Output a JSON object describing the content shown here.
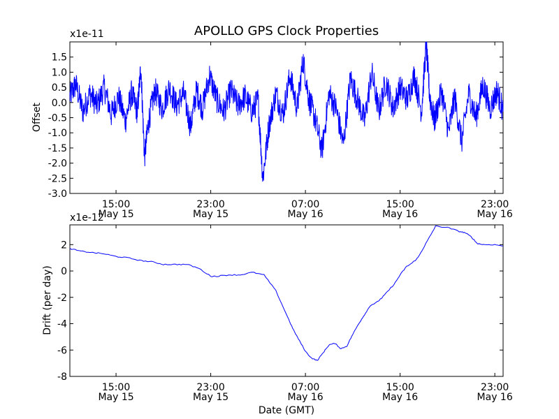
{
  "chart_data": [
    {
      "type": "line",
      "title": "APOLLO GPS Clock Properties",
      "ylabel": "Offset",
      "xlabel": "",
      "y_scale_label": "x1e-11",
      "ylim": [
        -3.0,
        2.0
      ],
      "yticks": [
        -3.0,
        -2.5,
        -2.0,
        -1.5,
        -1.0,
        -0.5,
        0.0,
        0.5,
        1.0,
        1.5
      ],
      "ytick_labels": [
        "-3.0",
        "-2.5",
        "-2.0",
        "-1.5",
        "-1.0",
        "-0.5",
        "0.0",
        "0.5",
        "1.0",
        "1.5"
      ],
      "xlim_hours": [
        11.1,
        47.7
      ],
      "xticks_hours": [
        15,
        23,
        31,
        39,
        47
      ],
      "xtick_labels": [
        {
          "time": "15:00",
          "date": "May 15"
        },
        {
          "time": "23:00",
          "date": "May 15"
        },
        {
          "time": "07:00",
          "date": "May 16"
        },
        {
          "time": "15:00",
          "date": "May 16"
        },
        {
          "time": "23:00",
          "date": "May 16"
        }
      ],
      "color": "#0000ff",
      "series": [
        {
          "name": "Offset",
          "x_hours": [
            11.1,
            11.6,
            12.2,
            12.8,
            13.4,
            14.0,
            14.6,
            15.2,
            15.8,
            16.3,
            16.8,
            17.1,
            17.4,
            17.8,
            18.3,
            18.9,
            19.5,
            20.1,
            20.7,
            21.3,
            21.8,
            22.3,
            22.9,
            23.5,
            24.1,
            24.7,
            25.3,
            25.9,
            26.5,
            27.0,
            27.4,
            27.9,
            28.5,
            29.1,
            29.7,
            30.3,
            30.8,
            31.3,
            31.8,
            32.4,
            33.0,
            33.6,
            34.2,
            34.8,
            35.4,
            36.0,
            36.6,
            37.2,
            37.8,
            38.4,
            39.0,
            39.6,
            40.2,
            40.8,
            41.2,
            41.5,
            41.9,
            42.5,
            43.1,
            43.6,
            44.2,
            44.8,
            45.4,
            46.0,
            46.6,
            47.2,
            47.7
          ],
          "y": [
            0.2,
            0.6,
            -0.3,
            0.3,
            -0.1,
            0.5,
            -0.4,
            0.2,
            -0.6,
            0.3,
            -0.3,
            1.2,
            -1.8,
            -0.5,
            0.4,
            -0.2,
            0.5,
            -0.1,
            0.3,
            -0.8,
            0.4,
            -0.2,
            0.9,
            0.1,
            -0.3,
            0.4,
            -0.1,
            0.2,
            -0.3,
            0.1,
            -2.5,
            -0.8,
            0.3,
            -0.4,
            0.9,
            -0.2,
            1.4,
            0.1,
            -0.5,
            -1.6,
            0.3,
            -0.2,
            -1.4,
            0.8,
            0.1,
            -0.6,
            1.0,
            -0.3,
            0.7,
            -0.2,
            0.5,
            0.1,
            0.9,
            -0.3,
            1.9,
            0.2,
            -0.6,
            0.4,
            -1.0,
            0.2,
            -1.3,
            0.3,
            -0.5,
            0.6,
            -0.2,
            0.4,
            -0.3
          ]
        }
      ]
    },
    {
      "type": "line",
      "title": "",
      "ylabel": "Drift (per day)",
      "xlabel": "Date (GMT)",
      "y_scale_label": "x1e-12",
      "ylim": [
        -8,
        3.5
      ],
      "yticks": [
        -8,
        -6,
        -4,
        -2,
        0,
        2
      ],
      "ytick_labels": [
        "-8",
        "-6",
        "-4",
        "-2",
        "0",
        "2"
      ],
      "xlim_hours": [
        11.1,
        47.7
      ],
      "xticks_hours": [
        15,
        23,
        31,
        39,
        47
      ],
      "xtick_labels": [
        {
          "time": "15:00",
          "date": "May 15"
        },
        {
          "time": "23:00",
          "date": "May 15"
        },
        {
          "time": "07:00",
          "date": "May 16"
        },
        {
          "time": "15:00",
          "date": "May 16"
        },
        {
          "time": "23:00",
          "date": "May 16"
        }
      ],
      "color": "#0000ff",
      "series": [
        {
          "name": "Drift",
          "x_hours": [
            11.1,
            12.0,
            13.0,
            14.0,
            15.0,
            16.0,
            17.0,
            18.0,
            19.0,
            20.0,
            21.0,
            22.0,
            23.0,
            23.5,
            24.5,
            25.5,
            26.5,
            27.5,
            28.5,
            29.5,
            30.0,
            30.5,
            31.0,
            31.5,
            32.0,
            32.5,
            33.0,
            33.5,
            34.0,
            34.5,
            35.0,
            35.5,
            36.0,
            36.5,
            37.0,
            37.5,
            38.0,
            38.5,
            39.0,
            39.5,
            40.0,
            40.5,
            41.0,
            41.5,
            42.0,
            43.0,
            44.0,
            44.5,
            45.0,
            45.5,
            46.0,
            47.0,
            47.7
          ],
          "y": [
            1.7,
            1.5,
            1.4,
            1.3,
            1.1,
            1.0,
            0.8,
            0.7,
            0.5,
            0.5,
            0.5,
            0.2,
            -0.4,
            -0.4,
            -0.3,
            -0.3,
            -0.1,
            -0.3,
            -1.5,
            -3.5,
            -4.5,
            -5.3,
            -6.1,
            -6.6,
            -6.8,
            -6.2,
            -5.6,
            -5.5,
            -5.9,
            -5.7,
            -4.8,
            -4.0,
            -3.3,
            -2.6,
            -2.4,
            -2.0,
            -1.5,
            -1.0,
            -0.3,
            0.3,
            0.6,
            1.0,
            1.8,
            2.6,
            3.4,
            3.3,
            3.0,
            2.9,
            2.6,
            2.1,
            2.0,
            2.0,
            1.9
          ]
        }
      ]
    }
  ]
}
